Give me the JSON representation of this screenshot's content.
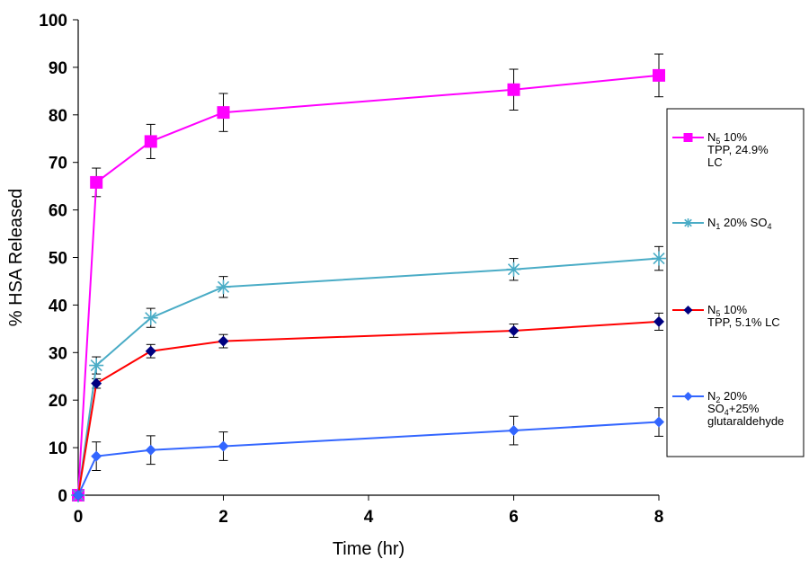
{
  "chart_data": {
    "type": "line",
    "xlabel": "Time (hr)",
    "ylabel": "% HSA Released",
    "xlim": [
      0,
      8
    ],
    "ylim": [
      0,
      100
    ],
    "xticks": [
      0,
      2,
      4,
      6,
      8
    ],
    "yticks": [
      0,
      10,
      20,
      30,
      40,
      50,
      60,
      70,
      80,
      90,
      100
    ],
    "x": [
      0,
      0.25,
      1,
      2,
      6,
      8
    ],
    "grid": false,
    "legend_position": "right",
    "series": [
      {
        "name": "N5 10% TPP, 24.9% LC",
        "legend_lines": [
          [
            {
              "t": "N"
            },
            {
              "t": "5",
              "sub": true
            },
            {
              "t": " 10%"
            }
          ],
          [
            {
              "t": "TPP, 24.9%"
            }
          ],
          [
            {
              "t": "LC"
            }
          ]
        ],
        "color": "#ff00ff",
        "marker": "square",
        "values": [
          0,
          65.8,
          74.4,
          80.5,
          85.3,
          88.3
        ],
        "errors": [
          0.5,
          3.0,
          3.6,
          4.0,
          4.3,
          4.5
        ]
      },
      {
        "name": "N1 20% SO4",
        "legend_lines": [
          [
            {
              "t": "N"
            },
            {
              "t": "1",
              "sub": true
            },
            {
              "t": " 20% SO"
            },
            {
              "t": "4",
              "sub": true
            }
          ]
        ],
        "color": "#4aacc6",
        "marker": "star",
        "values": [
          0,
          27.3,
          37.3,
          43.8,
          47.5,
          49.8
        ],
        "errors": [
          0.5,
          1.8,
          2.0,
          2.2,
          2.3,
          2.5
        ]
      },
      {
        "name": "N5 10% TPP, 5.1% LC",
        "legend_lines": [
          [
            {
              "t": "N"
            },
            {
              "t": "5",
              "sub": true
            },
            {
              "t": "  10%"
            }
          ],
          [
            {
              "t": "TPP,  5.1% LC"
            }
          ]
        ],
        "color": "#ff0000",
        "marker_color": "#000080",
        "marker": "diamond",
        "values": [
          0,
          23.5,
          30.3,
          32.4,
          34.6,
          36.5
        ],
        "errors": [
          0.5,
          1.0,
          1.4,
          1.4,
          1.4,
          1.8
        ]
      },
      {
        "name": "N2 20% SO4+25% glutaraldehyde",
        "legend_lines": [
          [
            {
              "t": "N"
            },
            {
              "t": "2",
              "sub": true
            },
            {
              "t": " 20%"
            }
          ],
          [
            {
              "t": "SO"
            },
            {
              "t": "4",
              "sub": true
            },
            {
              "t": "+25%"
            }
          ],
          [
            {
              "t": "glutaraldehyde"
            }
          ]
        ],
        "color": "#3366ff",
        "marker": "diamond",
        "values": [
          0,
          8.2,
          9.5,
          10.3,
          13.6,
          15.4
        ],
        "errors": [
          0.5,
          3.0,
          3.0,
          3.0,
          3.0,
          3.0
        ]
      }
    ]
  }
}
